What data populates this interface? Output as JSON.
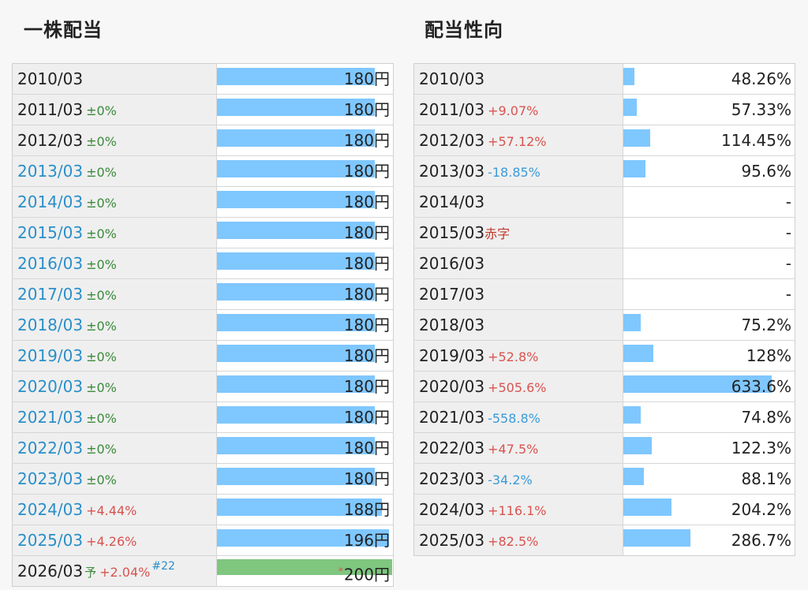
{
  "dividend": {
    "title": "一株配当",
    "unit": "円",
    "max": 200,
    "rows": [
      {
        "year": "2010/03",
        "link": false,
        "change": "",
        "change_type": "",
        "value": 180
      },
      {
        "year": "2011/03",
        "link": false,
        "change": "±0%",
        "change_type": "zero",
        "value": 180
      },
      {
        "year": "2012/03",
        "link": false,
        "change": "±0%",
        "change_type": "zero",
        "value": 180
      },
      {
        "year": "2013/03",
        "link": true,
        "change": "±0%",
        "change_type": "zero",
        "value": 180
      },
      {
        "year": "2014/03",
        "link": true,
        "change": "±0%",
        "change_type": "zero",
        "value": 180
      },
      {
        "year": "2015/03",
        "link": true,
        "change": "±0%",
        "change_type": "zero",
        "value": 180
      },
      {
        "year": "2016/03",
        "link": true,
        "change": "±0%",
        "change_type": "zero",
        "value": 180
      },
      {
        "year": "2017/03",
        "link": true,
        "change": "±0%",
        "change_type": "zero",
        "value": 180
      },
      {
        "year": "2018/03",
        "link": true,
        "change": "±0%",
        "change_type": "zero",
        "value": 180
      },
      {
        "year": "2019/03",
        "link": true,
        "change": "±0%",
        "change_type": "zero",
        "value": 180
      },
      {
        "year": "2020/03",
        "link": true,
        "change": "±0%",
        "change_type": "zero",
        "value": 180
      },
      {
        "year": "2021/03",
        "link": true,
        "change": "±0%",
        "change_type": "zero",
        "value": 180
      },
      {
        "year": "2022/03",
        "link": true,
        "change": "±0%",
        "change_type": "zero",
        "value": 180
      },
      {
        "year": "2023/03",
        "link": true,
        "change": "±0%",
        "change_type": "zero",
        "value": 180
      },
      {
        "year": "2024/03",
        "link": true,
        "change": "+4.44%",
        "change_type": "pos",
        "value": 188
      },
      {
        "year": "2025/03",
        "link": true,
        "change": "+4.26%",
        "change_type": "pos",
        "value": 196
      },
      {
        "year": "2026/03",
        "link": false,
        "forecast": true,
        "forecast_mark": "予",
        "change": "+2.04%",
        "change_type": "pos",
        "note": "#22",
        "asterisk": "*",
        "value": 200
      }
    ]
  },
  "payout": {
    "title": "配当性向",
    "max": 633.6,
    "rows": [
      {
        "year": "2010/03",
        "change": "",
        "change_type": "",
        "value": 48.26,
        "label": "48.26%"
      },
      {
        "year": "2011/03",
        "change": "+9.07%",
        "change_type": "pos",
        "value": 57.33,
        "label": "57.33%"
      },
      {
        "year": "2012/03",
        "change": "+57.12%",
        "change_type": "pos",
        "value": 114.45,
        "label": "114.45%"
      },
      {
        "year": "2013/03",
        "change": "-18.85%",
        "change_type": "neg",
        "value": 95.6,
        "label": "95.6%"
      },
      {
        "year": "2014/03",
        "change": "",
        "change_type": "",
        "value": 0,
        "label": "-"
      },
      {
        "year": "2015/03",
        "change": "赤字",
        "change_type": "loss",
        "value": 0,
        "label": "-"
      },
      {
        "year": "2016/03",
        "change": "",
        "change_type": "",
        "value": 0,
        "label": "-"
      },
      {
        "year": "2017/03",
        "change": "",
        "change_type": "",
        "value": 0,
        "label": "-"
      },
      {
        "year": "2018/03",
        "change": "",
        "change_type": "",
        "value": 75.2,
        "label": "75.2%"
      },
      {
        "year": "2019/03",
        "change": "+52.8%",
        "change_type": "pos",
        "value": 128,
        "label": "128%"
      },
      {
        "year": "2020/03",
        "change": "+505.6%",
        "change_type": "pos",
        "value": 633.6,
        "label": "633.6%"
      },
      {
        "year": "2021/03",
        "change": "-558.8%",
        "change_type": "neg",
        "value": 74.8,
        "label": "74.8%"
      },
      {
        "year": "2022/03",
        "change": "+47.5%",
        "change_type": "pos",
        "value": 122.3,
        "label": "122.3%"
      },
      {
        "year": "2023/03",
        "change": "-34.2%",
        "change_type": "neg",
        "value": 88.1,
        "label": "88.1%"
      },
      {
        "year": "2024/03",
        "change": "+116.1%",
        "change_type": "pos",
        "value": 204.2,
        "label": "204.2%"
      },
      {
        "year": "2025/03",
        "change": "+82.5%",
        "change_type": "pos",
        "value": 286.7,
        "label": "286.7%"
      }
    ]
  },
  "colors": {
    "bar": "#7fc7ff",
    "forecast_bar": "#7fc67f",
    "positive": "#d9534f",
    "negative": "#3a9bd9",
    "zero": "#3c8a3c",
    "link": "#2a8fc9"
  }
}
